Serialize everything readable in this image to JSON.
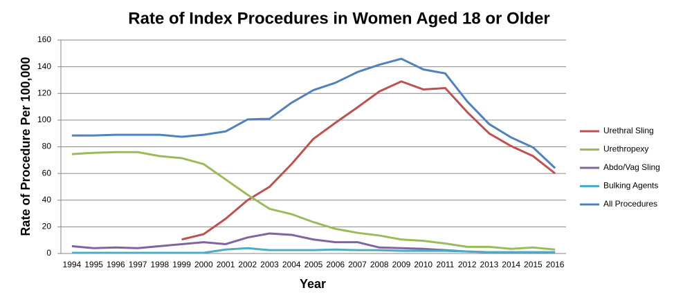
{
  "chart_data": {
    "type": "line",
    "title": "Rate of Index Procedures in Women Aged 18 or Older",
    "x_label": "Year",
    "y_label": "Rate of Procedure Per 100,000",
    "categories": [
      "1994",
      "1995",
      "1996",
      "1997",
      "1998",
      "1999",
      "2000",
      "2001",
      "2002",
      "2003",
      "2004",
      "2005",
      "2006",
      "2007",
      "2008",
      "2009",
      "2010",
      "2011",
      "2012",
      "2013",
      "2014",
      "2015",
      "2016"
    ],
    "ylim": [
      0,
      160
    ],
    "yticks": [
      0,
      20,
      40,
      60,
      80,
      100,
      120,
      140,
      160
    ],
    "grid": true,
    "legend": "right",
    "series": [
      {
        "name": "Urethral Sling",
        "color": "#c0504d",
        "values": [
          null,
          null,
          null,
          null,
          null,
          10.5,
          14.5,
          26,
          40,
          50,
          67,
          86,
          98,
          109.5,
          121.5,
          129,
          123,
          124,
          106,
          90,
          80.5,
          73,
          60
        ]
      },
      {
        "name": "Urethropexy",
        "color": "#9bbb59",
        "values": [
          74.5,
          75.5,
          76,
          76,
          73,
          71.5,
          67,
          55.5,
          44,
          33.5,
          29.5,
          23.5,
          18.5,
          15.5,
          13.5,
          10.5,
          9.5,
          7.5,
          5,
          5,
          3.5,
          4.5,
          3
        ]
      },
      {
        "name": "Abdo/Vag Sling",
        "color": "#8064a2",
        "values": [
          5.5,
          4,
          4.5,
          4,
          5.5,
          7,
          8.5,
          7,
          12,
          15,
          14,
          10.5,
          8.5,
          8.5,
          4.5,
          4,
          3.5,
          2.5,
          1.5,
          1,
          1,
          1,
          1
        ]
      },
      {
        "name": "Bulking Agents",
        "color": "#4bacc6",
        "values": [
          0.5,
          0.5,
          0.5,
          0.5,
          0.5,
          0.5,
          0.5,
          3,
          4,
          2.5,
          2.5,
          2.5,
          3,
          2.5,
          2.5,
          2,
          2,
          2,
          1.5,
          1,
          1,
          1,
          1
        ]
      },
      {
        "name": "All Procedures",
        "color": "#4f81bd",
        "values": [
          88.5,
          88.5,
          89,
          89,
          89,
          87.5,
          89,
          91.5,
          100.5,
          101,
          113,
          122.5,
          128,
          136,
          141.5,
          146,
          138,
          135,
          114,
          97,
          87,
          79.5,
          64
        ]
      }
    ]
  }
}
